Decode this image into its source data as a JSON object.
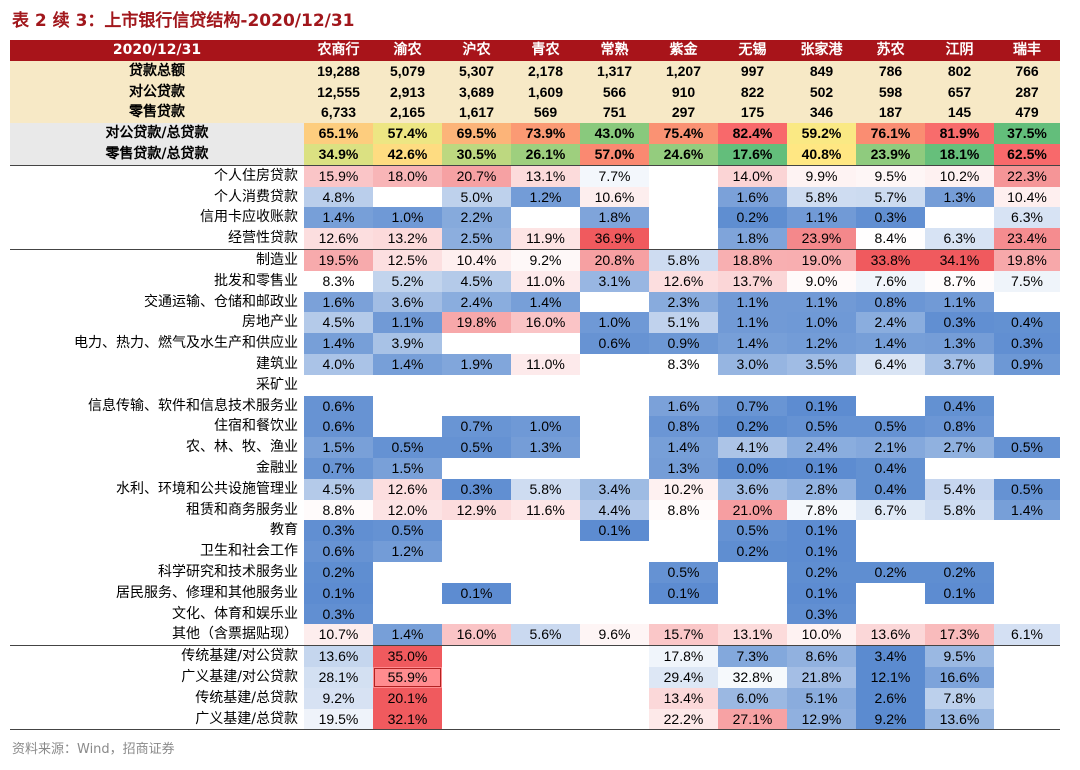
{
  "title": "表 2 续 3：上市银行信贷结构-2020/12/31",
  "source": "资料来源：Wind，招商证券",
  "header": {
    "date": "2020/12/31",
    "banks": [
      "农商行",
      "渝农",
      "沪农",
      "青农",
      "常熟",
      "紫金",
      "无锡",
      "张家港",
      "苏农",
      "江阴",
      "瑞丰"
    ]
  },
  "rows": [
    {
      "label": "贷款总额",
      "cells": [
        "19,288",
        "5,079",
        "5,307",
        "2,178",
        "1,317",
        "1,207",
        "997",
        "849",
        "786",
        "802",
        "766"
      ]
    },
    {
      "label": "对公贷款",
      "cells": [
        "12,555",
        "2,913",
        "3,689",
        "1,609",
        "566",
        "910",
        "822",
        "502",
        "598",
        "657",
        "287"
      ]
    },
    {
      "label": "零售贷款",
      "cells": [
        "6,733",
        "2,165",
        "1,617",
        "569",
        "751",
        "297",
        "175",
        "346",
        "187",
        "145",
        "479"
      ]
    },
    {
      "label": "对公贷款/总贷款",
      "cells": [
        "65.1%",
        "57.4%",
        "69.5%",
        "73.9%",
        "43.0%",
        "75.4%",
        "82.4%",
        "59.2%",
        "76.1%",
        "81.9%",
        "37.5%"
      ]
    },
    {
      "label": "零售贷款/总贷款",
      "cells": [
        "34.9%",
        "42.6%",
        "30.5%",
        "26.1%",
        "57.0%",
        "24.6%",
        "17.6%",
        "40.8%",
        "23.9%",
        "18.1%",
        "62.5%"
      ]
    },
    {
      "label": "个人住房贷款",
      "cells": [
        "15.9%",
        "18.0%",
        "20.7%",
        "13.1%",
        "7.7%",
        "",
        "14.0%",
        "9.9%",
        "9.5%",
        "10.2%",
        "22.3%"
      ]
    },
    {
      "label": "个人消费贷款",
      "cells": [
        "4.8%",
        "",
        "5.0%",
        "1.2%",
        "10.6%",
        "",
        "1.6%",
        "5.8%",
        "5.7%",
        "1.3%",
        "10.4%"
      ]
    },
    {
      "label": "信用卡应收账款",
      "cells": [
        "1.4%",
        "1.0%",
        "2.2%",
        "",
        "1.8%",
        "",
        "0.2%",
        "1.1%",
        "0.3%",
        "",
        "6.3%"
      ]
    },
    {
      "label": "经营性贷款",
      "cells": [
        "12.6%",
        "13.2%",
        "2.5%",
        "11.9%",
        "36.9%",
        "",
        "1.8%",
        "23.9%",
        "8.4%",
        "6.3%",
        "23.4%"
      ]
    },
    {
      "label": "制造业",
      "cells": [
        "19.5%",
        "12.5%",
        "10.4%",
        "9.2%",
        "20.8%",
        "5.8%",
        "18.8%",
        "19.0%",
        "33.8%",
        "34.1%",
        "19.8%"
      ]
    },
    {
      "label": "批发和零售业",
      "cells": [
        "8.3%",
        "5.2%",
        "4.5%",
        "11.0%",
        "3.1%",
        "12.6%",
        "13.7%",
        "9.0%",
        "7.6%",
        "8.7%",
        "7.5%"
      ]
    },
    {
      "label": "交通运输、仓储和邮政业",
      "cells": [
        "1.6%",
        "3.6%",
        "2.4%",
        "1.4%",
        "",
        "2.3%",
        "1.1%",
        "1.1%",
        "0.8%",
        "1.1%",
        ""
      ]
    },
    {
      "label": "房地产业",
      "cells": [
        "4.5%",
        "1.1%",
        "19.8%",
        "16.0%",
        "1.0%",
        "5.1%",
        "1.1%",
        "1.0%",
        "2.4%",
        "0.3%",
        "0.4%"
      ]
    },
    {
      "label": "电力、热力、燃气及水生产和供应业",
      "cells": [
        "1.4%",
        "3.9%",
        "",
        "",
        "0.6%",
        "0.9%",
        "1.4%",
        "1.2%",
        "1.4%",
        "1.3%",
        "0.3%"
      ]
    },
    {
      "label": "建筑业",
      "cells": [
        "4.0%",
        "1.4%",
        "1.9%",
        "11.0%",
        "",
        "8.3%",
        "3.0%",
        "3.5%",
        "6.4%",
        "3.7%",
        "0.9%"
      ]
    },
    {
      "label": "采矿业",
      "cells": [
        "",
        "",
        "",
        "",
        "",
        "",
        "",
        "",
        "",
        "",
        ""
      ]
    },
    {
      "label": "信息传输、软件和信息技术服务业",
      "cells": [
        "0.6%",
        "",
        "",
        "",
        "",
        "1.6%",
        "0.7%",
        "0.1%",
        "",
        "0.4%",
        ""
      ]
    },
    {
      "label": "住宿和餐饮业",
      "cells": [
        "0.6%",
        "",
        "0.7%",
        "1.0%",
        "",
        "0.8%",
        "0.2%",
        "0.5%",
        "0.5%",
        "0.8%",
        ""
      ]
    },
    {
      "label": "农、林、牧、渔业",
      "cells": [
        "1.5%",
        "0.5%",
        "0.5%",
        "1.3%",
        "",
        "1.4%",
        "4.1%",
        "2.4%",
        "2.1%",
        "2.7%",
        "0.5%"
      ]
    },
    {
      "label": "金融业",
      "cells": [
        "0.7%",
        "1.5%",
        "",
        "",
        "",
        "1.3%",
        "0.0%",
        "0.1%",
        "0.4%",
        "",
        ""
      ]
    },
    {
      "label": "水利、环境和公共设施管理业",
      "cells": [
        "4.5%",
        "12.6%",
        "0.3%",
        "5.8%",
        "3.4%",
        "10.2%",
        "3.6%",
        "2.8%",
        "0.4%",
        "5.4%",
        "0.5%"
      ]
    },
    {
      "label": "租赁和商务服务业",
      "cells": [
        "8.8%",
        "12.0%",
        "12.9%",
        "11.6%",
        "4.4%",
        "8.8%",
        "21.0%",
        "7.8%",
        "6.7%",
        "5.8%",
        "1.4%"
      ]
    },
    {
      "label": "教育",
      "cells": [
        "0.3%",
        "0.5%",
        "",
        "",
        "0.1%",
        "",
        "0.5%",
        "0.1%",
        "",
        "",
        ""
      ]
    },
    {
      "label": "卫生和社会工作",
      "cells": [
        "0.6%",
        "1.2%",
        "",
        "",
        "",
        "",
        "0.2%",
        "0.1%",
        "",
        "",
        ""
      ]
    },
    {
      "label": "科学研究和技术服务业",
      "cells": [
        "0.2%",
        "",
        "",
        "",
        "",
        "0.5%",
        "",
        "0.2%",
        "0.2%",
        "0.2%",
        ""
      ]
    },
    {
      "label": "居民服务、修理和其他服务业",
      "cells": [
        "0.1%",
        "",
        "0.1%",
        "",
        "",
        "0.1%",
        "",
        "0.1%",
        "",
        "0.1%",
        ""
      ]
    },
    {
      "label": "文化、体育和娱乐业",
      "cells": [
        "0.3%",
        "",
        "",
        "",
        "",
        "",
        "",
        "0.3%",
        "",
        "",
        ""
      ]
    },
    {
      "label": "其他（含票据贴现）",
      "cells": [
        "10.7%",
        "1.4%",
        "16.0%",
        "5.6%",
        "9.6%",
        "15.7%",
        "13.1%",
        "10.0%",
        "13.6%",
        "17.3%",
        "6.1%"
      ]
    },
    {
      "label": "传统基建/对公贷款",
      "cells": [
        "13.6%",
        "35.0%",
        "",
        "",
        "",
        "17.8%",
        "7.3%",
        "8.6%",
        "3.4%",
        "9.5%",
        ""
      ]
    },
    {
      "label": "广义基建/对公贷款",
      "cells": [
        "28.1%",
        "55.9%",
        "",
        "",
        "",
        "29.4%",
        "32.8%",
        "21.8%",
        "12.1%",
        "16.6%",
        ""
      ]
    },
    {
      "label": "传统基建/总贷款",
      "cells": [
        "9.2%",
        "20.1%",
        "",
        "",
        "",
        "13.4%",
        "6.0%",
        "5.1%",
        "2.6%",
        "7.8%",
        ""
      ]
    },
    {
      "label": "广义基建/总贷款",
      "cells": [
        "19.5%",
        "32.1%",
        "",
        "",
        "",
        "22.2%",
        "27.1%",
        "12.9%",
        "9.2%",
        "13.6%",
        ""
      ]
    }
  ],
  "colors": {
    "header_bg": "#a8141a",
    "totals_bg": "#f7e9c6",
    "ratio_label_bg": "#e9e9e9",
    "title": "#a1171c",
    "scale_low": "#5b8bd0",
    "scale_mid": "#ffffff",
    "scale_high": "#f05a5e",
    "ratio_low": "#63be7b",
    "ratio_mid": "#ffeb84",
    "ratio_high": "#f8696b",
    "outline": "#b22222"
  }
}
